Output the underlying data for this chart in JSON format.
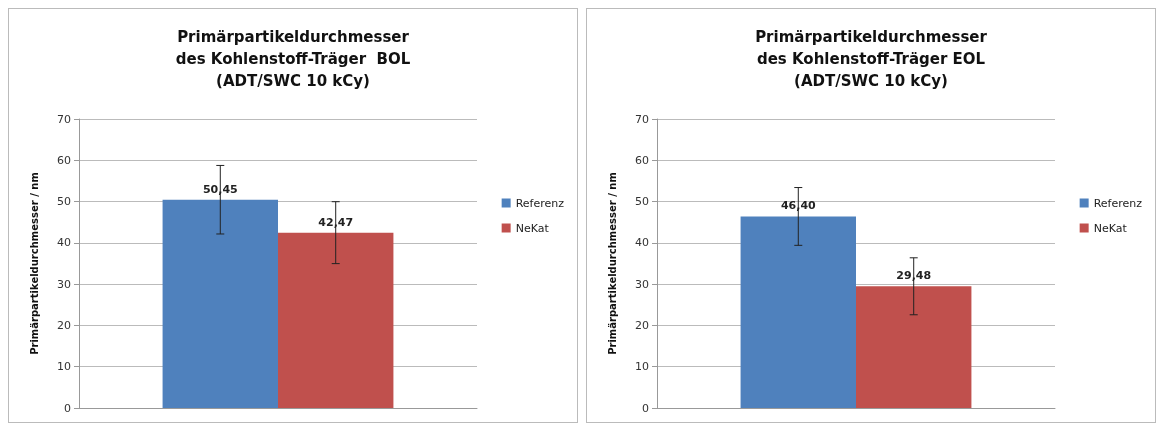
{
  "chart_data": [
    {
      "type": "bar",
      "title": "Primärpartikeldurchmesser\ndes Kohlenstoff-Träger  BOL\n(ADT/SWC 10 kCy)",
      "ylabel": "Primärpartikeldurchmesser / nm",
      "categories": [
        null
      ],
      "series": [
        {
          "name": "Referenz",
          "color": "#4f81bd",
          "values": [
            50.45
          ],
          "errors": [
            8.3
          ],
          "value_labels": [
            "50,45"
          ]
        },
        {
          "name": "NeKat",
          "color": "#c0504d",
          "values": [
            42.47
          ],
          "errors": [
            7.5
          ],
          "value_labels": [
            "42,47"
          ]
        }
      ],
      "ylim": [
        0,
        70
      ],
      "yticks": [
        0,
        10,
        20,
        30,
        40,
        50,
        60,
        70
      ],
      "grid": "y",
      "legend": "right"
    },
    {
      "type": "bar",
      "title": "Primärpartikeldurchmesser\ndes Kohlenstoff-Träger EOL\n(ADT/SWC 10 kCy)",
      "ylabel": "Primärpartikeldurchmesser / nm",
      "categories": [
        null
      ],
      "series": [
        {
          "name": "Referenz",
          "color": "#4f81bd",
          "values": [
            46.4
          ],
          "errors": [
            7
          ],
          "value_labels": [
            "46,40"
          ]
        },
        {
          "name": "NeKat",
          "color": "#c0504d",
          "values": [
            29.48
          ],
          "errors": [
            6.9
          ],
          "value_labels": [
            "29,48"
          ]
        }
      ],
      "ylim": [
        0,
        70
      ],
      "yticks": [
        0,
        10,
        20,
        30,
        40,
        50,
        60,
        70
      ],
      "grid": "y",
      "legend": "right"
    }
  ]
}
